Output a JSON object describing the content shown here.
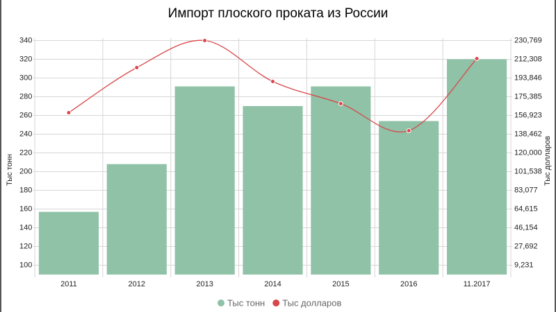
{
  "chart_data": {
    "type": "bar-line",
    "title": "Импорт плоского проката из России",
    "categories": [
      "2011",
      "2012",
      "2013",
      "2014",
      "2015",
      "2016",
      "11.2017"
    ],
    "series": [
      {
        "name": "Тыс тонн",
        "color": "#8fc2a6",
        "type": "bar",
        "axis": "y",
        "values": [
          157,
          208,
          291,
          270,
          291,
          254,
          320
        ]
      },
      {
        "name": "Тыс долларов",
        "color": "#d9474b",
        "type": "line",
        "axis": "y2",
        "values": [
          159658,
          204103,
          230769,
          190428,
          168547,
          141878,
          212988
        ]
      }
    ],
    "ylabel": "Тыс тонн",
    "y2label": "Тыс долларов",
    "ylim": [
      90,
      350
    ],
    "yticks": [
      100,
      120,
      140,
      160,
      180,
      200,
      220,
      240,
      260,
      280,
      300,
      320,
      340
    ],
    "y2lim": [
      0,
      240000
    ],
    "y2ticks": [
      {
        "value": 9231,
        "label": "9,231"
      },
      {
        "value": 27692,
        "label": "27,692"
      },
      {
        "value": 46154,
        "label": "46,154"
      },
      {
        "value": 64615,
        "label": "64,615"
      },
      {
        "value": 83077,
        "label": "83,077"
      },
      {
        "value": 101538,
        "label": "101,538"
      },
      {
        "value": 120000,
        "label": "120,000"
      },
      {
        "value": 138462,
        "label": "138,462"
      },
      {
        "value": 156923,
        "label": "156,923"
      },
      {
        "value": 175385,
        "label": "175,385"
      },
      {
        "value": 193846,
        "label": "193,846"
      },
      {
        "value": 212308,
        "label": "212,308"
      },
      {
        "value": 230769,
        "label": "230,769"
      }
    ],
    "grid": true,
    "legend": "bottom"
  }
}
